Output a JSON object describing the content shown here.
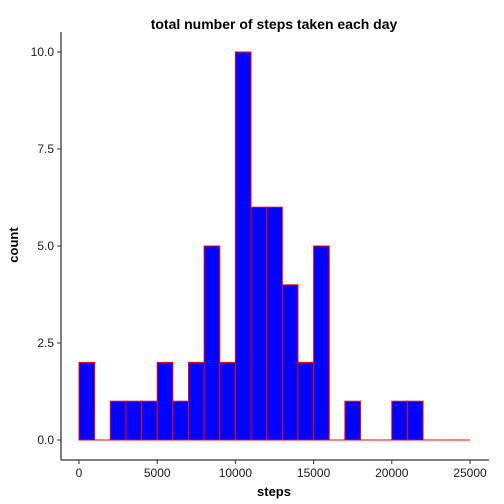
{
  "chart_data": {
    "type": "bar",
    "title": "total number of steps taken each day",
    "xlabel": "steps",
    "ylabel": "count",
    "bin_width": 1000,
    "bins_start": [
      0,
      1000,
      2000,
      3000,
      4000,
      5000,
      6000,
      7000,
      8000,
      9000,
      10000,
      11000,
      12000,
      13000,
      14000,
      15000,
      16000,
      17000,
      18000,
      19000,
      20000,
      21000,
      22000,
      23000,
      24000
    ],
    "values": [
      2,
      0,
      1,
      1,
      1,
      2,
      1,
      2,
      5,
      2,
      10,
      6,
      6,
      4,
      2,
      5,
      0,
      1,
      0,
      0,
      1,
      1,
      0,
      0,
      0
    ],
    "xlim": [
      0,
      25000
    ],
    "ylim": [
      0,
      10
    ],
    "x_ticks": [
      0,
      5000,
      10000,
      15000,
      20000,
      25000
    ],
    "y_ticks": [
      0.0,
      2.5,
      5.0,
      7.5,
      10.0
    ],
    "x_tick_labels": [
      "0",
      "5000",
      "10000",
      "15000",
      "20000",
      "25000"
    ],
    "y_tick_labels": [
      "0.0",
      "2.5",
      "5.0",
      "7.5",
      "10.0"
    ],
    "fill_color": "#0000ff",
    "border_color": "#ff0000",
    "grid": false
  }
}
